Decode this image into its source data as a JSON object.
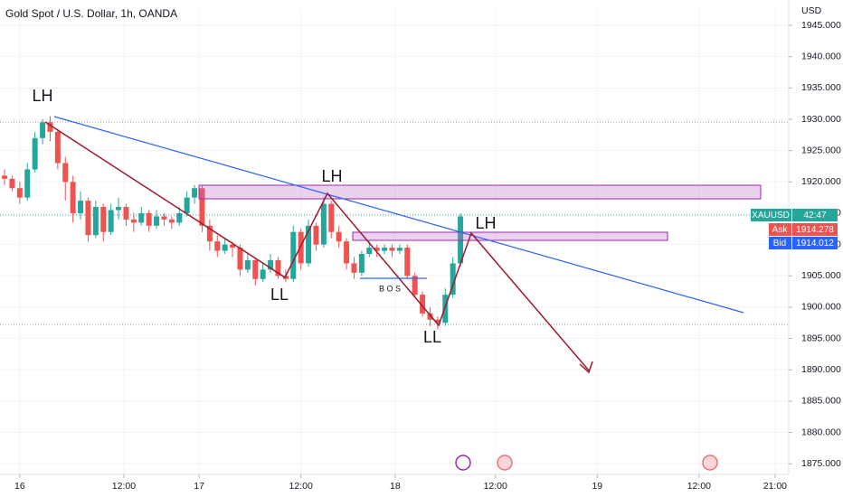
{
  "chart_data": {
    "type": "candlestick",
    "title": "Gold Spot / U.S. Dollar, 1h, OANDA",
    "y_axis_label": "USD",
    "up_color": "#26a69a",
    "down_color": "#ef5350",
    "x": [
      0,
      1,
      2,
      3,
      4,
      5,
      6,
      7,
      8,
      9,
      10,
      11,
      12,
      13,
      14,
      15,
      16,
      17,
      18,
      19,
      20,
      21,
      22,
      23,
      24,
      25,
      26,
      27,
      28,
      29,
      30,
      31,
      32,
      33,
      34,
      35,
      36,
      37,
      38,
      39,
      40,
      41,
      42,
      43,
      44,
      45,
      46,
      47,
      48,
      49,
      50,
      51,
      52,
      53,
      54,
      55,
      56,
      57,
      58,
      59,
      60
    ],
    "open": [
      1921,
      1920.5,
      1919,
      1917.5,
      1922,
      1927,
      1929.5,
      1928,
      1923,
      1920,
      1915,
      1917,
      1911.5,
      1916,
      1912,
      1915.5,
      1916,
      1914,
      1913.5,
      1915,
      1913,
      1914.5,
      1914,
      1913.5,
      1915,
      1917.5,
      1919,
      1913,
      1910.5,
      1909,
      1910,
      1909.5,
      1906,
      1907.5,
      1904.5,
      1906,
      1907.5,
      1905,
      1904.5,
      1912,
      1907,
      1913,
      1910,
      1916.5,
      1912,
      1910.5,
      1907,
      1905.5,
      1908.5,
      1909.5,
      1909,
      1909.5,
      1909,
      1909.5,
      1905,
      1902,
      1899,
      1898,
      1897.5,
      1902,
      1907
    ],
    "high": [
      1922,
      1921,
      1920,
      1923,
      1928,
      1930,
      1930.5,
      1928.5,
      1924,
      1921,
      1918.5,
      1917.5,
      1917,
      1916.5,
      1916.5,
      1917.5,
      1916.5,
      1915,
      1916,
      1915.5,
      1915.5,
      1915,
      1914.5,
      1916,
      1918.5,
      1919.5,
      1919.5,
      1914,
      1911.5,
      1911,
      1910.5,
      1910,
      1908.5,
      1908,
      1907,
      1908.5,
      1908,
      1906,
      1913,
      1912.5,
      1914,
      1913.5,
      1917.5,
      1917,
      1913,
      1911,
      1908,
      1909,
      1910.5,
      1910,
      1910,
      1910,
      1910,
      1910,
      1905.5,
      1902.5,
      1900,
      1898.5,
      1903,
      1908,
      1915
    ],
    "low": [
      1919.5,
      1918.5,
      1916.5,
      1917,
      1921.5,
      1926,
      1926.5,
      1922,
      1917,
      1913.5,
      1914,
      1910.5,
      1911,
      1910.5,
      1911.5,
      1914,
      1913,
      1912,
      1913,
      1912,
      1912.5,
      1913,
      1912.5,
      1913,
      1914.5,
      1916.5,
      1912,
      1909,
      1908,
      1908.5,
      1908,
      1905,
      1905.5,
      1903.5,
      1904,
      1905.5,
      1904.5,
      1904,
      1904,
      1906,
      1906.5,
      1909,
      1909.5,
      1911,
      1909.5,
      1906,
      1904.5,
      1905,
      1908,
      1908,
      1908.5,
      1908,
      1908.5,
      1904.5,
      1901.5,
      1898.5,
      1897,
      1896.5,
      1897,
      1901.5,
      1906.5
    ],
    "close": [
      1920.5,
      1919,
      1917.5,
      1922,
      1927,
      1929.5,
      1928,
      1923,
      1920,
      1915,
      1917,
      1911.5,
      1916,
      1912,
      1915.5,
      1916,
      1914,
      1913.5,
      1915,
      1913,
      1914.5,
      1914,
      1913.5,
      1915,
      1917.5,
      1919,
      1913,
      1910.5,
      1909,
      1910,
      1909.5,
      1906,
      1907.5,
      1904.5,
      1906,
      1907.5,
      1905,
      1904.5,
      1912,
      1907,
      1913,
      1910,
      1916.5,
      1912,
      1910.5,
      1907,
      1905.5,
      1908.5,
      1909.5,
      1909,
      1909.5,
      1909,
      1909.5,
      1905,
      1902,
      1899,
      1898,
      1897.5,
      1902,
      1907,
      1914.5
    ],
    "xlim": [
      -0.6,
      103.2
    ],
    "xticks": [
      {
        "value": 2,
        "label": "16"
      },
      {
        "value": 15.7,
        "label": "12:00"
      },
      {
        "value": 25.6,
        "label": "17"
      },
      {
        "value": 39,
        "label": "12:00"
      },
      {
        "value": 51.4,
        "label": "18"
      },
      {
        "value": 64.6,
        "label": "12:00"
      },
      {
        "value": 78,
        "label": "19"
      },
      {
        "value": 91.4,
        "label": "12:00"
      },
      {
        "value": 101.4,
        "label": "21:00"
      }
    ],
    "ylim": [
      1873.3,
      1947.6
    ],
    "yticks": [
      {
        "value": 1875,
        "label": "1875.000"
      },
      {
        "value": 1880,
        "label": "1880.000"
      },
      {
        "value": 1885,
        "label": "1885.000"
      },
      {
        "value": 1890,
        "label": "1890.000"
      },
      {
        "value": 1895,
        "label": "1895.000"
      },
      {
        "value": 1900,
        "label": "1900.000"
      },
      {
        "value": 1905,
        "label": "1905.000"
      },
      {
        "value": 1910,
        "label": "1910.000"
      },
      {
        "value": 1915,
        "label": "1915.000"
      },
      {
        "value": 1920,
        "label": "1920.000"
      },
      {
        "value": 1925,
        "label": "1925.000"
      },
      {
        "value": 1930,
        "label": "1930.000"
      },
      {
        "value": 1935,
        "label": "1935.000"
      },
      {
        "value": 1940,
        "label": "1940.000"
      },
      {
        "value": 1945,
        "label": "1945.000"
      }
    ],
    "annotations": [
      "LH",
      "LL",
      "LH",
      "LL",
      "LH"
    ],
    "bos_label": "B O S",
    "symbol": "XAUUSD",
    "countdown": "42:47",
    "ask_label": "Ask",
    "ask": "1914.278",
    "bid_label": "Bid",
    "bid": "1914.012"
  }
}
